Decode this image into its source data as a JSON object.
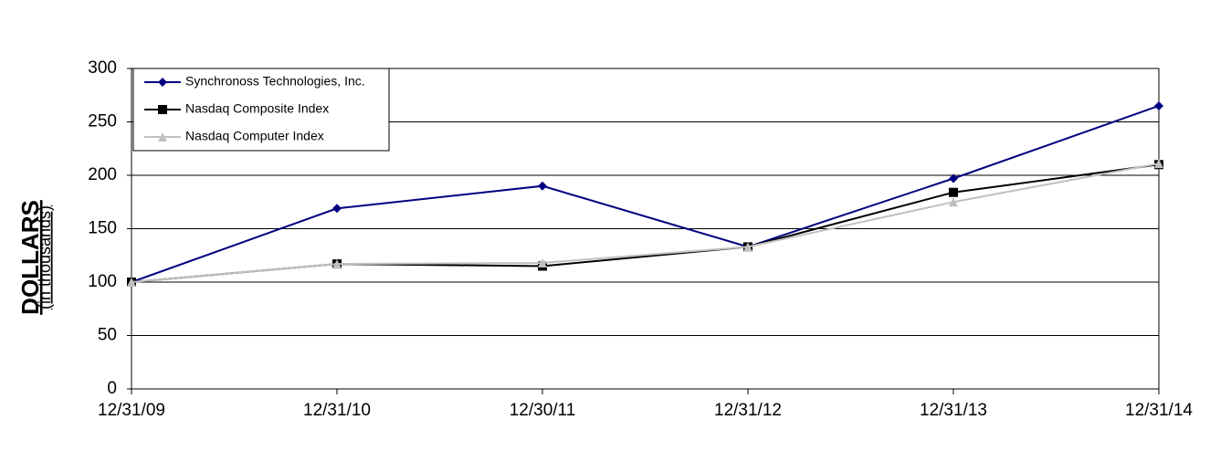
{
  "chart_data": {
    "type": "line",
    "y_label": "DOLLARS",
    "y_label_note": "(in thousands)",
    "categories": [
      "12/31/09",
      "12/31/10",
      "12/30/11",
      "12/31/12",
      "12/31/13",
      "12/31/14"
    ],
    "series": [
      {
        "name": "Synchronoss Technologies, Inc.",
        "color": "#000080",
        "marker": "diamond",
        "values": [
          100,
          169,
          190,
          133,
          197,
          265
        ]
      },
      {
        "name": "Nasdaq Composite Index",
        "color": "#000000",
        "marker": "square",
        "values": [
          100,
          117,
          115,
          133,
          184,
          210
        ]
      },
      {
        "name": "Nasdaq Computer Index",
        "color": "#c0c0c0",
        "marker": "triangle",
        "values": [
          100,
          117,
          118,
          133,
          175,
          211
        ]
      }
    ],
    "ylim": [
      0,
      300
    ],
    "yticks": [
      0,
      50,
      100,
      150,
      200,
      250,
      300
    ],
    "grid": true,
    "legend": "top-left"
  }
}
